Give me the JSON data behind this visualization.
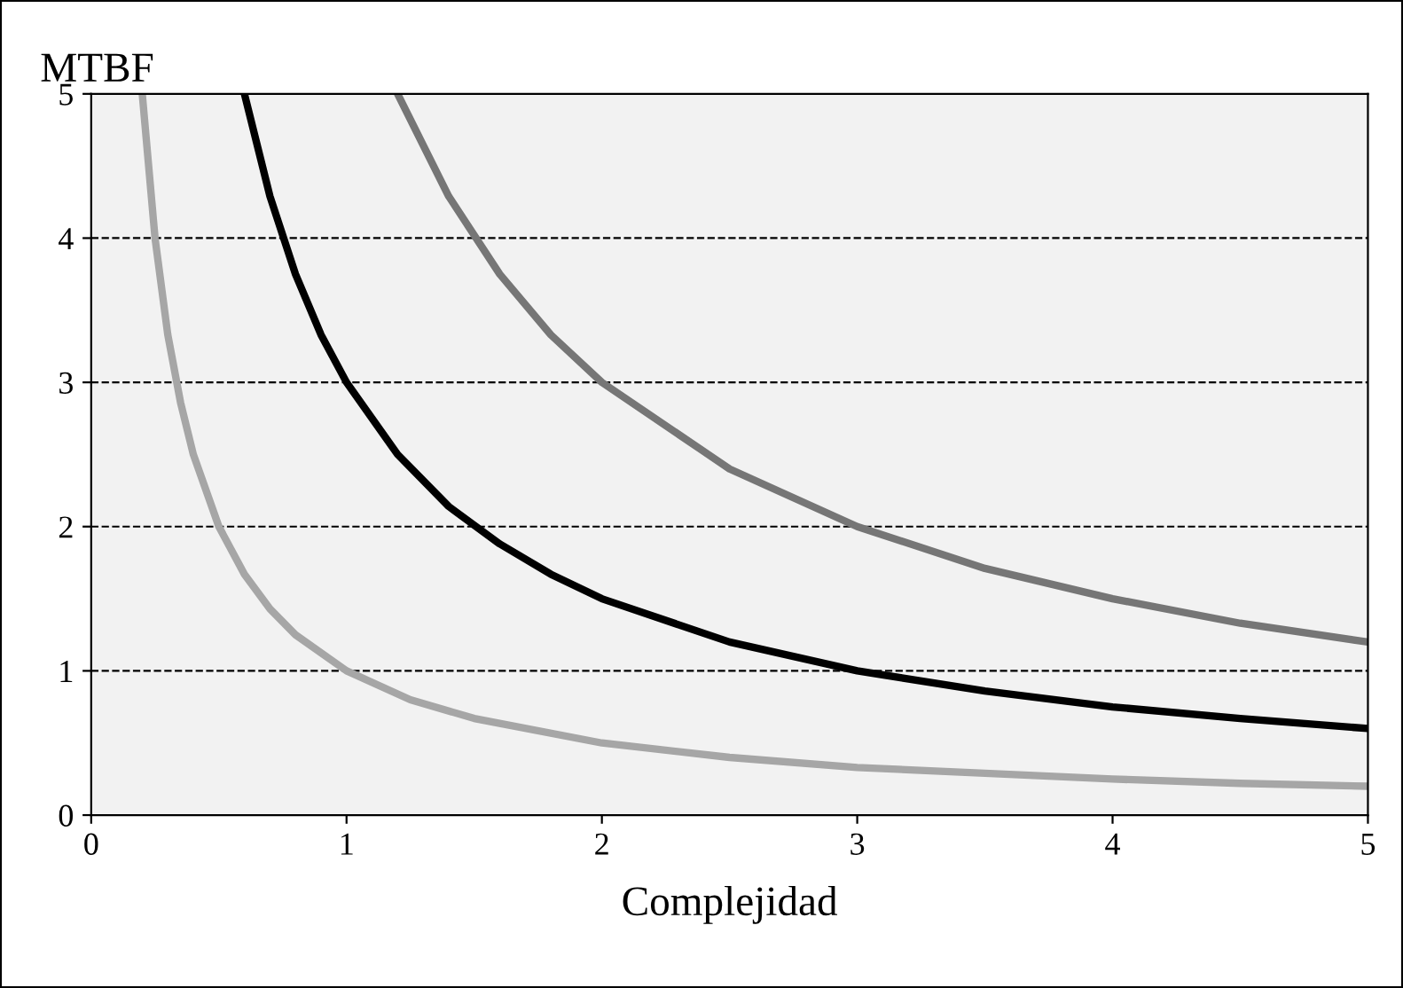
{
  "chart_data": {
    "type": "line",
    "ylabel": "MTBF",
    "xlabel": "Complejidad",
    "xlim": [
      0,
      5
    ],
    "xticks": [
      0,
      1,
      2,
      3,
      4,
      5
    ],
    "ylim": [
      0,
      5
    ],
    "yticks": [
      0,
      1,
      2,
      3,
      4,
      5
    ],
    "grid": "y",
    "line_style": "solid",
    "marker": "none",
    "series": [
      {
        "color": "#a6a6a6",
        "x": [
          0.2,
          0.25,
          0.3,
          0.35,
          0.4,
          0.5,
          0.6,
          0.7,
          0.8,
          1,
          1.25,
          1.5,
          2,
          2.5,
          3,
          3.5,
          4,
          4.5,
          5
        ],
        "values": [
          5,
          4,
          3.33,
          2.86,
          2.5,
          2,
          1.67,
          1.43,
          1.25,
          1,
          0.8,
          0.67,
          0.5,
          0.4,
          0.33,
          0.29,
          0.25,
          0.22,
          0.2
        ]
      },
      {
        "color": "#000000",
        "x": [
          0.6,
          0.7,
          0.8,
          0.9,
          1,
          1.2,
          1.4,
          1.6,
          1.8,
          2,
          2.5,
          3,
          3.5,
          4,
          4.5,
          5
        ],
        "values": [
          5,
          4.29,
          3.75,
          3.33,
          3,
          2.5,
          2.14,
          1.88,
          1.67,
          1.5,
          1.2,
          1,
          0.86,
          0.75,
          0.67,
          0.6
        ]
      },
      {
        "color": "#767676",
        "x": [
          1.2,
          1.4,
          1.6,
          1.8,
          2,
          2.5,
          3,
          3.5,
          4,
          4.5,
          5
        ],
        "values": [
          5,
          4.29,
          3.75,
          3.33,
          3,
          2.4,
          2,
          1.71,
          1.5,
          1.33,
          1.2
        ]
      }
    ]
  }
}
